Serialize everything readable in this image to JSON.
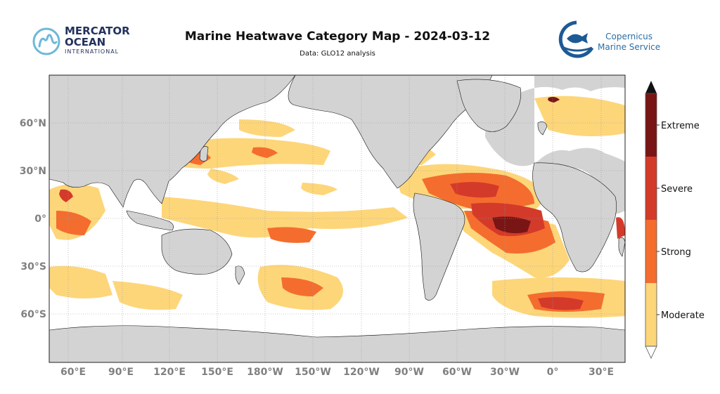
{
  "title": "Marine Heatwave Category Map - 2024-03-12",
  "subtitle": "Data: GLO12 analysis",
  "logos": {
    "mercator_line1": "MERCATOR",
    "mercator_line2": "OCEAN",
    "mercator_line3": "INTERNATIONAL",
    "copernicus_line1": "Copernicus",
    "copernicus_line2": "Marine Service"
  },
  "colors": {
    "land": "#d3d3d3",
    "ocean": "#ffffff",
    "moderate": "#fdd67a",
    "strong": "#f46d2e",
    "severe": "#d43a2a",
    "extreme": "#7a1515",
    "grid": "#9a9a9a"
  },
  "chart_data": {
    "type": "heatmap",
    "projection": "equirectangular",
    "lon_range": [
      45,
      195
    ],
    "lat_range": [
      -82,
      84
    ],
    "lon_ticks": [
      "60°E",
      "90°E",
      "120°E",
      "150°E",
      "180°W",
      "150°W",
      "120°W",
      "90°W",
      "60°W",
      "30°W",
      "0°",
      "30°E"
    ],
    "lat_ticks": [
      "60°N",
      "30°N",
      "0°",
      "30°S",
      "60°S"
    ],
    "colorbar": {
      "categories": [
        "Moderate",
        "Strong",
        "Severe",
        "Extreme"
      ],
      "extend": "both"
    },
    "grid": true
  }
}
